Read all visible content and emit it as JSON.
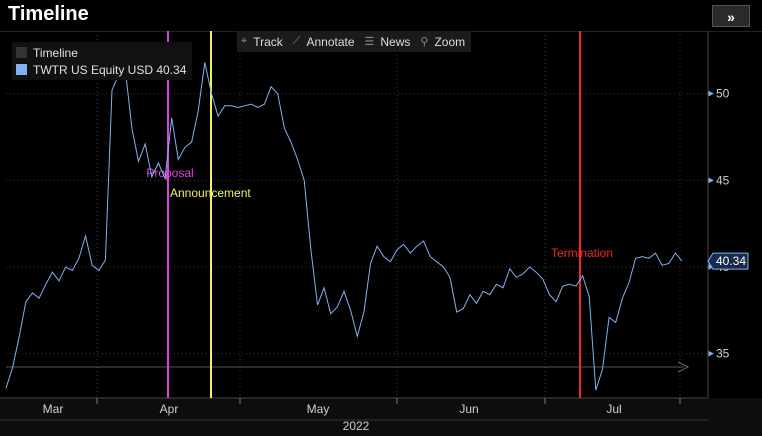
{
  "header": {
    "title": "Timeline",
    "expand_label": "»"
  },
  "toolbar": {
    "items": [
      {
        "label": "Track",
        "icon": "crosshair-icon",
        "glyph": "⌖"
      },
      {
        "label": "Annotate",
        "icon": "pencil-icon",
        "glyph": "⟋"
      },
      {
        "label": "News",
        "icon": "news-icon",
        "glyph": "☰"
      },
      {
        "label": "Zoom",
        "icon": "magnifier-icon",
        "glyph": "⚲"
      }
    ]
  },
  "legend": {
    "items": [
      {
        "label": "Timeline",
        "color": "#333333"
      },
      {
        "label": "TWTR US Equity USD 40.34",
        "color": "#7fb3f0"
      }
    ]
  },
  "chart_data": {
    "type": "line",
    "y_axis": {
      "ticks": [
        35,
        40,
        45,
        50
      ],
      "ylim": [
        32.5,
        53.5
      ],
      "side": "right"
    },
    "x_axis": {
      "month_labels": [
        "Mar",
        "Apr",
        "May",
        "Jun",
        "Jul"
      ],
      "year_label": "2022"
    },
    "last_value_label": "40.34",
    "series": [
      {
        "name": "TWTR US Equity USD",
        "color": "#7fb3f0",
        "values": [
          33.0,
          34.2,
          36.0,
          38.0,
          38.5,
          38.2,
          39.0,
          39.7,
          39.2,
          40.0,
          39.8,
          40.5,
          41.8,
          40.1,
          39.8,
          40.4,
          50.2,
          51.1,
          51.4,
          48.0,
          46.1,
          47.1,
          45.2,
          46.0,
          45.1,
          48.6,
          46.2,
          46.9,
          47.2,
          49.0,
          51.8,
          50.0,
          48.7,
          49.3,
          49.3,
          49.2,
          49.3,
          49.4,
          49.2,
          49.4,
          50.4,
          50.0,
          48.0,
          47.2,
          46.2,
          45.0,
          41.0,
          37.8,
          38.8,
          37.3,
          37.7,
          38.6,
          37.5,
          36.0,
          37.4,
          40.2,
          41.2,
          40.6,
          40.3,
          41.0,
          41.3,
          40.8,
          41.2,
          41.5,
          40.6,
          40.3,
          40.0,
          39.4,
          37.4,
          37.6,
          38.4,
          37.9,
          38.6,
          38.4,
          39.0,
          38.8,
          39.9,
          39.4,
          39.6,
          40.0,
          39.7,
          39.3,
          38.4,
          38.0,
          38.9,
          39.0,
          38.9,
          39.5,
          38.3,
          32.9,
          34.1,
          37.1,
          36.8,
          38.2,
          39.1,
          40.5,
          40.6,
          40.5,
          40.8,
          40.1,
          40.2,
          40.8,
          40.34
        ]
      }
    ],
    "events": [
      {
        "label": "Proposal",
        "color": "#e040e0"
      },
      {
        "label": "Announcement",
        "color": "#f2f266"
      },
      {
        "label": "Termination",
        "color": "#ee2a2a"
      }
    ]
  }
}
